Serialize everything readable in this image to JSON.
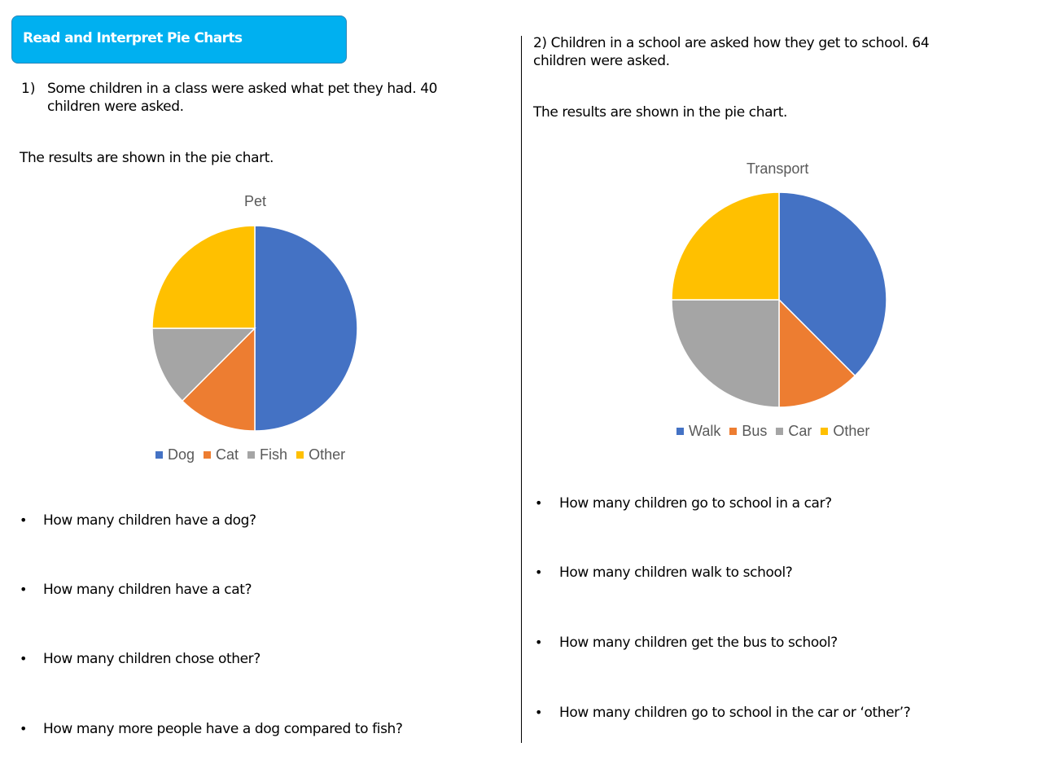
{
  "header": {
    "title": "Read and Interpret Pie Charts"
  },
  "q1": {
    "number": "1)",
    "line1": "Some children in a class were asked what pet they had. 40",
    "line2": "children were asked.",
    "results": "The results are shown in the pie chart.",
    "bullets": [
      "How many children have a dog?",
      "How many children have a cat?",
      "How many children chose other?",
      "How many more people have a dog compared to fish?"
    ]
  },
  "q2": {
    "line1": "2) Children in a school are asked how they get to school. 64",
    "line2": "children were asked.",
    "results": "The results are shown in the pie chart.",
    "bullets": [
      "How many children go to school in a car?",
      "How many children walk to school?",
      "How many children get the bus to school?",
      "How many children go to school in the car or ‘other’?"
    ]
  },
  "bullet_symbol": "•",
  "chart_data": [
    {
      "type": "pie",
      "title": "Pet",
      "categories": [
        "Dog",
        "Cat",
        "Fish",
        "Other"
      ],
      "values": [
        20,
        5,
        5,
        10
      ],
      "colors": [
        "#4472c4",
        "#ed7d31",
        "#a5a5a5",
        "#ffc000"
      ],
      "legend": "bottom"
    },
    {
      "type": "pie",
      "title": "Transport",
      "categories": [
        "Walk",
        "Bus",
        "Car",
        "Other"
      ],
      "values": [
        24,
        8,
        16,
        16
      ],
      "colors": [
        "#4472c4",
        "#ed7d31",
        "#a5a5a5",
        "#ffc000"
      ],
      "legend": "bottom"
    }
  ]
}
